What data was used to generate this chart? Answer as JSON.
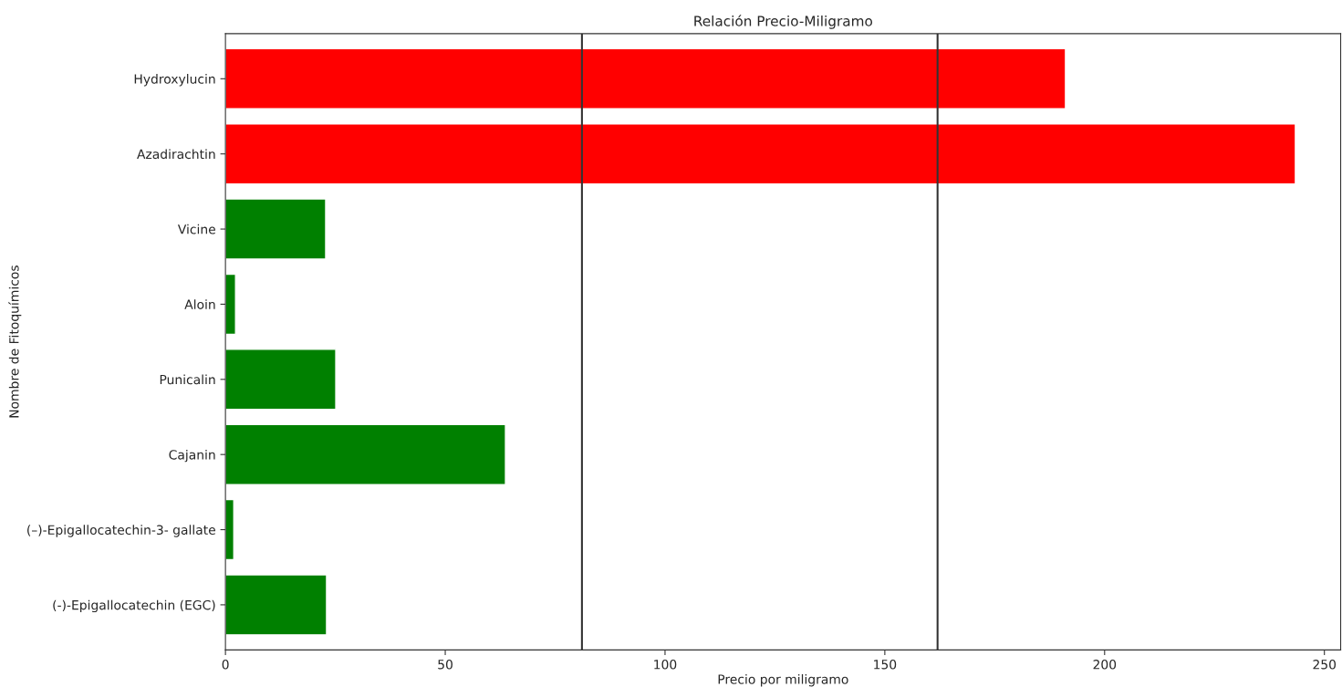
{
  "chart_data": {
    "type": "bar",
    "orientation": "horizontal",
    "title": "Relación Precio-Miligramo",
    "xlabel": "Precio por miligramo",
    "ylabel": "Nombre de Fitoquímicos",
    "categories": [
      "Hydroxylucin",
      "Azadirachtin",
      "Vicine",
      "Aloin",
      "Punicalin",
      "Cajanin",
      "(–)-Epigallocatechin-3- gallate",
      "(-)-Epigallocatechin (EGC)"
    ],
    "values": [
      191.1,
      243.4,
      22.8,
      2.3,
      25.1,
      63.7,
      1.9,
      23.0
    ],
    "colors": [
      "#ff0000",
      "#ff0000",
      "#008000",
      "#008000",
      "#008000",
      "#008000",
      "#008000",
      "#008000"
    ],
    "xlim": [
      0,
      253.7
    ],
    "xticks": [
      0,
      50,
      100,
      150,
      200,
      250
    ],
    "grid": false,
    "ref_lines": [
      {
        "axis": "x",
        "value": 81.1,
        "color": "#333333"
      },
      {
        "axis": "x",
        "value": 162.0,
        "color": "#333333"
      }
    ]
  }
}
